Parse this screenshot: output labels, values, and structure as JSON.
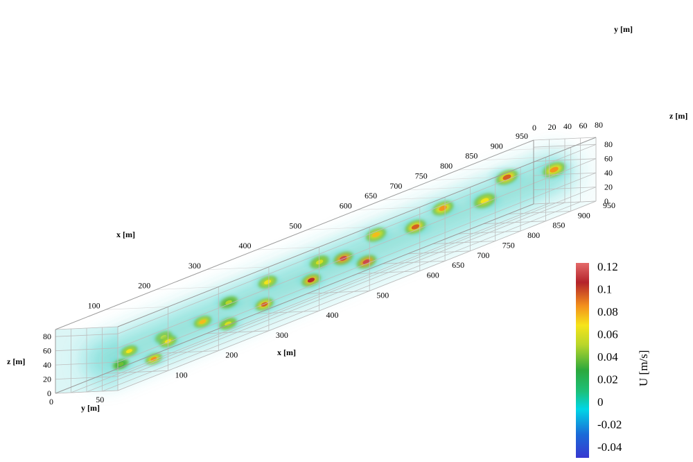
{
  "chart_data": {
    "type": "heatmap",
    "title": "",
    "variable": "U",
    "colorbar_label": "U [m/s]",
    "colorbar_range": [
      -0.04,
      0.12
    ],
    "colorbar_ticks": [
      "0.12",
      "0.1",
      "0.08",
      "0.06",
      "0.04",
      "0.02",
      "0",
      "-0.02",
      "-0.04"
    ],
    "colormap": [
      "#3b3bd6",
      "#00bcd4",
      "#2bbf4f",
      "#f1e21c",
      "#f07d1c",
      "#b9262a",
      "#e66a6a"
    ],
    "axes": {
      "x": {
        "label": "x [m]",
        "range": [
          0,
          950
        ],
        "far_edge_ticks": [
          "100",
          "200",
          "300",
          "400",
          "500",
          "600",
          "650",
          "700",
          "750",
          "800",
          "850",
          "900",
          "950"
        ],
        "near_edge_ticks": [
          "100",
          "200",
          "300",
          "400",
          "500",
          "600",
          "650",
          "700",
          "750",
          "800",
          "850",
          "900",
          "950"
        ]
      },
      "y": {
        "label": "y [m]",
        "range": [
          0,
          80
        ],
        "near_ticks": [
          "0",
          "50"
        ],
        "far_ticks": [
          "0",
          "20",
          "40",
          "60",
          "80"
        ]
      },
      "z": {
        "label": "z [m]",
        "range": [
          0,
          90
        ],
        "near_ticks": [
          "0",
          "20",
          "40",
          "60",
          "80"
        ],
        "far_ticks": [
          "0",
          "20",
          "40",
          "60",
          "80"
        ]
      }
    },
    "grid": true,
    "legend": "colorbar-right",
    "plumes": [
      {
        "x": 60,
        "y": 45,
        "z": 22,
        "u": 0.03
      },
      {
        "x": 100,
        "y": 30,
        "z": 30,
        "u": 0.06
      },
      {
        "x": 110,
        "y": 55,
        "z": 15,
        "u": 0.08
      },
      {
        "x": 150,
        "y": 42,
        "z": 35,
        "u": 0.05
      },
      {
        "x": 185,
        "y": 25,
        "z": 20,
        "u": 0.06
      },
      {
        "x": 215,
        "y": 50,
        "z": 38,
        "u": 0.07
      },
      {
        "x": 250,
        "y": 60,
        "z": 25,
        "u": 0.05
      },
      {
        "x": 290,
        "y": 35,
        "z": 45,
        "u": 0.04
      },
      {
        "x": 330,
        "y": 55,
        "z": 30,
        "u": 0.09
      },
      {
        "x": 375,
        "y": 30,
        "z": 50,
        "u": 0.06
      },
      {
        "x": 415,
        "y": 60,
        "z": 40,
        "u": 0.1
      },
      {
        "x": 455,
        "y": 45,
        "z": 55,
        "u": 0.05
      },
      {
        "x": 510,
        "y": 40,
        "z": 45,
        "u": 0.11
      },
      {
        "x": 525,
        "y": 60,
        "z": 35,
        "u": 0.11
      },
      {
        "x": 575,
        "y": 40,
        "z": 60,
        "u": 0.07
      },
      {
        "x": 630,
        "y": 55,
        "z": 55,
        "u": 0.09
      },
      {
        "x": 700,
        "y": 45,
        "z": 62,
        "u": 0.08
      },
      {
        "x": 760,
        "y": 60,
        "z": 55,
        "u": 0.06
      },
      {
        "x": 835,
        "y": 40,
        "z": 68,
        "u": 0.09
      },
      {
        "x": 890,
        "y": 65,
        "z": 62,
        "u": 0.08
      }
    ]
  }
}
